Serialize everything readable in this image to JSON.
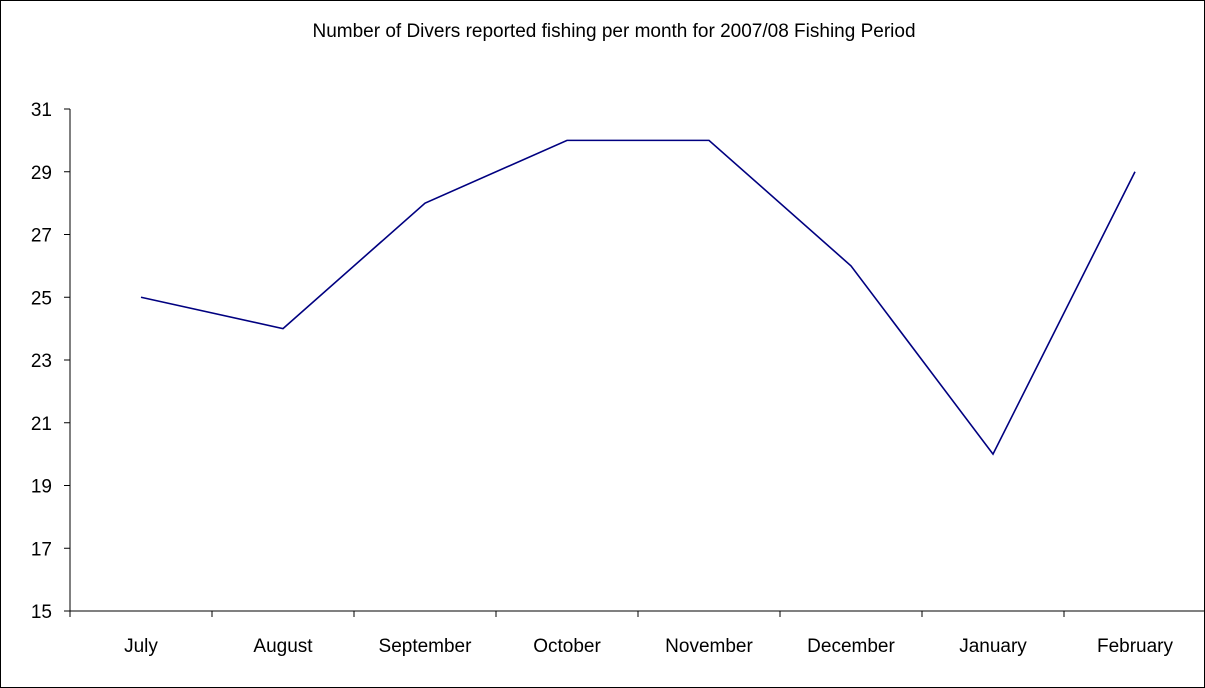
{
  "chart_data": {
    "type": "line",
    "title": "Number of Divers reported fishing per month for 2007/08 Fishing Period",
    "xlabel": "",
    "ylabel": "",
    "categories": [
      "July",
      "August",
      "September",
      "October",
      "November",
      "December",
      "January",
      "February"
    ],
    "series": [
      {
        "values": [
          25,
          24,
          28,
          30,
          30,
          26,
          20,
          29
        ]
      }
    ],
    "ylim": [
      15,
      31
    ],
    "yticks": [
      15,
      17,
      19,
      21,
      23,
      25,
      27,
      29,
      31
    ],
    "grid": false,
    "legend": "none",
    "line_color": "#000080",
    "axis_color": "#000000"
  }
}
